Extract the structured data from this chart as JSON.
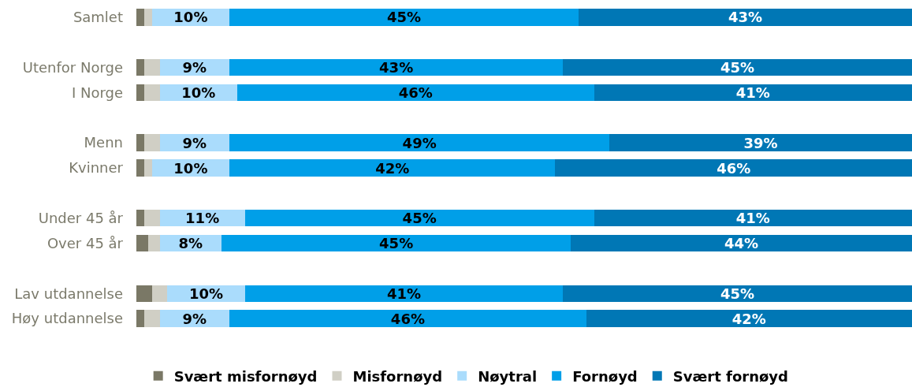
{
  "chart_data": {
    "type": "bar",
    "orientation": "horizontal",
    "stacked": true,
    "categories": [
      "Samlet",
      null,
      "Utenfor Norge",
      "I Norge",
      null,
      "Menn",
      "Kvinner",
      null,
      "Under 45 år",
      "Over 45 år",
      null,
      "Lav utdannelse",
      "Høy utdannelse"
    ],
    "xlim": [
      0,
      100
    ],
    "tick_labels": "y",
    "legend": "bottom",
    "series": [
      {
        "name": "Svært misfornøyd",
        "color": "#7a7866",
        "values": [
          1,
          null,
          1,
          1,
          null,
          1,
          1,
          null,
          1,
          1.5,
          null,
          2,
          1
        ]
      },
      {
        "name": "Misfornøyd",
        "color": "#d0cfc5",
        "values": [
          1,
          null,
          2,
          2,
          null,
          2,
          1,
          null,
          2,
          1.5,
          null,
          2,
          2
        ]
      },
      {
        "name": "Nøytral",
        "color": "#aadcfc",
        "values": [
          10,
          null,
          9,
          10,
          null,
          9,
          10,
          null,
          11,
          8,
          null,
          10,
          9
        ],
        "value_labels": [
          "10%",
          null,
          "9%",
          "10%",
          null,
          "9%",
          "10%",
          null,
          "11%",
          "8%",
          null,
          "10%",
          "9%"
        ]
      },
      {
        "name": "Fornøyd",
        "color": "#009fe8",
        "values": [
          45,
          null,
          43,
          46,
          null,
          49,
          42,
          null,
          45,
          45,
          null,
          41,
          46
        ],
        "value_labels": [
          "45%",
          null,
          "43%",
          "46%",
          null,
          "49%",
          "42%",
          null,
          "45%",
          "45%",
          null,
          "41%",
          "46%"
        ]
      },
      {
        "name": "Svært fornøyd",
        "color": "#0077b5",
        "values": [
          43,
          null,
          45,
          41,
          null,
          39,
          46,
          null,
          41,
          44,
          null,
          45,
          42
        ],
        "value_labels": [
          "43%",
          null,
          "45%",
          "41%",
          null,
          "39%",
          "46%",
          null,
          "41%",
          "44%",
          null,
          "45%",
          "42%"
        ]
      }
    ]
  }
}
